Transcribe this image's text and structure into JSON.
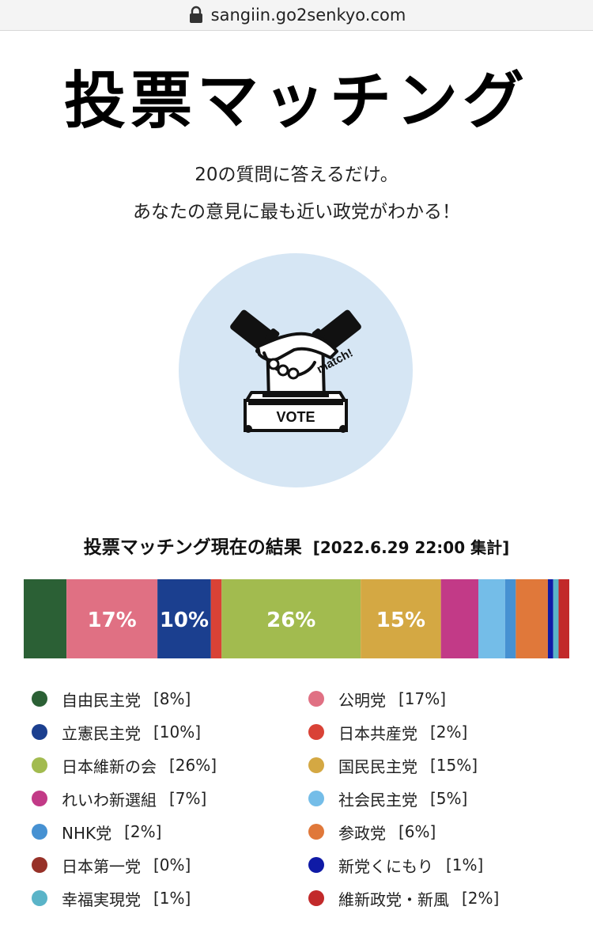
{
  "browser": {
    "url": "sangiin.go2senkyo.com"
  },
  "page": {
    "title": "投票マッチング",
    "subtitle_line1": "20の質問に答えるだけ。",
    "subtitle_line2": "あなたの意見に最も近い政党がわかる！",
    "hero": {
      "icon": "handshake-ballot-box-icon",
      "box_label": "VOTE",
      "stamp_label": "match!",
      "bg_color": "#d6e6f4"
    }
  },
  "results": {
    "title": "投票マッチング現在の結果",
    "date": "[2022.6.29 22:00 集計]"
  },
  "chart_data": {
    "type": "bar",
    "orientation": "horizontal-stacked-100",
    "unit": "%",
    "series": [
      {
        "name": "自由民主党",
        "value": 8,
        "color": "#2b6035",
        "legend_label": "[8%]"
      },
      {
        "name": "公明党",
        "value": 17,
        "color": "#e07083",
        "legend_label": "[17%]",
        "bar_label": "17%"
      },
      {
        "name": "立憲民主党",
        "value": 10,
        "color": "#1b3f8f",
        "legend_label": "[10%]",
        "bar_label": "10%"
      },
      {
        "name": "日本共産党",
        "value": 2,
        "color": "#d94236",
        "legend_label": "[2%]"
      },
      {
        "name": "日本維新の会",
        "value": 26,
        "color": "#a2bb4f",
        "legend_label": "[26%]",
        "bar_label": "26%"
      },
      {
        "name": "国民民主党",
        "value": 15,
        "color": "#d4a843",
        "legend_label": "[15%]",
        "bar_label": "15%"
      },
      {
        "name": "れいわ新選組",
        "value": 7,
        "color": "#c23a87",
        "legend_label": "[7%]"
      },
      {
        "name": "社会民主党",
        "value": 5,
        "color": "#74bde8",
        "legend_label": "[5%]"
      },
      {
        "name": "NHK党",
        "value": 2,
        "color": "#4691d2",
        "legend_label": "[2%]"
      },
      {
        "name": "参政党",
        "value": 6,
        "color": "#e0783a",
        "legend_label": "[6%]"
      },
      {
        "name": "日本第一党",
        "value": 0,
        "color": "#973128",
        "legend_label": "[0%]"
      },
      {
        "name": "新党くにもり",
        "value": 1,
        "color": "#0f1aa6",
        "legend_label": "[1%]"
      },
      {
        "name": "幸福実現党",
        "value": 1,
        "color": "#5ab4c8",
        "legend_label": "[1%]"
      },
      {
        "name": "維新政党・新風",
        "value": 2,
        "color": "#c2292a",
        "legend_label": "[2%]"
      }
    ]
  }
}
